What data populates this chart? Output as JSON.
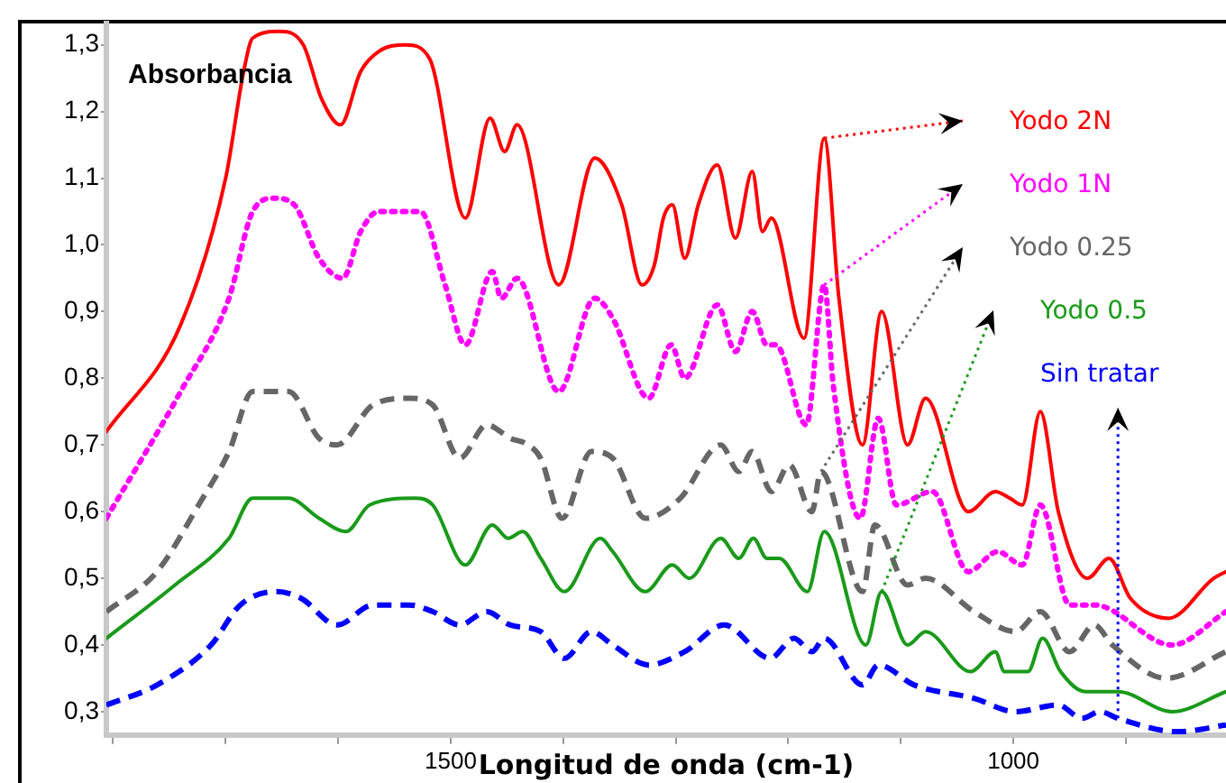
{
  "chart_data": {
    "type": "line",
    "xlabel": "Longitud de onda (cm-1)",
    "ylabel": "Absorbancia",
    "xlim": [
      1806,
      811
    ],
    "ylim": [
      0.265,
      1.332
    ],
    "xticks": [
      {
        "value": 1800,
        "label": null
      },
      {
        "value": 1700,
        "label": null
      },
      {
        "value": 1600,
        "label": null
      },
      1500,
      {
        "value": 1400,
        "label": null
      },
      {
        "value": 1300,
        "label": null
      },
      {
        "value": 1200,
        "label": null
      },
      {
        "value": 1100,
        "label": null
      },
      1000,
      {
        "value": 900,
        "label": null
      }
    ],
    "yticks": [
      {
        "value": 0.3,
        "label": "0,3"
      },
      {
        "value": 0.4,
        "label": "0,4"
      },
      {
        "value": 0.5,
        "label": "0,5"
      },
      {
        "value": 0.6,
        "label": "0,6"
      },
      {
        "value": 0.7,
        "label": "0,7"
      },
      {
        "value": 0.8,
        "label": "0,8"
      },
      {
        "value": 0.9,
        "label": "0,9"
      },
      {
        "value": 1.0,
        "label": "1,0"
      },
      {
        "value": 1.1,
        "label": "1,1"
      },
      {
        "value": 1.2,
        "label": "1,2"
      },
      {
        "value": 1.3,
        "label": "1,3"
      }
    ],
    "grid": false,
    "legend": false,
    "marker": "none",
    "series": [
      {
        "name": "Yodo 2N",
        "color": "#ff0000",
        "line_style": "solid",
        "x": [
          1806,
          1740,
          1700,
          1684,
          1676,
          1652,
          1631,
          1615,
          1598,
          1580,
          1564,
          1540,
          1519,
          1487,
          1465,
          1452,
          1441,
          1404,
          1372,
          1348,
          1330,
          1319,
          1311,
          1303,
          1292,
          1280,
          1263,
          1247,
          1232,
          1223,
          1215,
          1186,
          1168,
          1155,
          1134,
          1117,
          1094,
          1078,
          1040,
          1016,
          1003,
          992,
          976,
          960,
          934,
          915,
          896,
          862,
          822,
          811
        ],
        "values": [
          0.72,
          0.88,
          1.1,
          1.26,
          1.31,
          1.32,
          1.3,
          1.22,
          1.18,
          1.26,
          1.29,
          1.3,
          1.28,
          1.04,
          1.19,
          1.14,
          1.18,
          0.94,
          1.13,
          1.06,
          0.94,
          0.97,
          1.04,
          1.06,
          0.98,
          1.06,
          1.12,
          1.01,
          1.11,
          1.02,
          1.04,
          0.86,
          1.16,
          0.92,
          0.7,
          0.9,
          0.7,
          0.77,
          0.6,
          0.63,
          0.62,
          0.61,
          0.75,
          0.6,
          0.5,
          0.53,
          0.47,
          0.44,
          0.5,
          0.51
        ]
      },
      {
        "name": "Yodo 1N",
        "color": "#ff00ff",
        "line_style": "dotted",
        "x": [
          1806,
          1740,
          1697,
          1676,
          1657,
          1639,
          1617,
          1596,
          1580,
          1564,
          1543,
          1527,
          1505,
          1487,
          1463,
          1455,
          1441,
          1404,
          1372,
          1356,
          1324,
          1304,
          1292,
          1263,
          1247,
          1232,
          1219,
          1211,
          1184,
          1168,
          1160,
          1136,
          1120,
          1104,
          1072,
          1040,
          1014,
          992,
          976,
          950,
          928,
          859,
          811
        ],
        "values": [
          0.59,
          0.78,
          0.92,
          1.05,
          1.07,
          1.06,
          0.98,
          0.95,
          1.02,
          1.05,
          1.05,
          1.05,
          0.94,
          0.85,
          0.96,
          0.92,
          0.95,
          0.78,
          0.92,
          0.89,
          0.77,
          0.85,
          0.8,
          0.91,
          0.84,
          0.9,
          0.85,
          0.85,
          0.73,
          0.94,
          0.79,
          0.59,
          0.74,
          0.61,
          0.63,
          0.51,
          0.54,
          0.52,
          0.61,
          0.46,
          0.46,
          0.4,
          0.45
        ]
      },
      {
        "name": "Yodo 0.25",
        "color": "#666666",
        "line_style": "dashed",
        "x": [
          1806,
          1761,
          1724,
          1697,
          1676,
          1660,
          1644,
          1617,
          1601,
          1569,
          1537,
          1516,
          1492,
          1468,
          1447,
          1431,
          1420,
          1401,
          1375,
          1356,
          1327,
          1296,
          1260,
          1244,
          1232,
          1215,
          1199,
          1179,
          1171,
          1134,
          1123,
          1094,
          1078,
          1035,
          998,
          976,
          950,
          928,
          912,
          864,
          811
        ],
        "values": [
          0.45,
          0.51,
          0.61,
          0.69,
          0.78,
          0.78,
          0.78,
          0.71,
          0.7,
          0.76,
          0.77,
          0.76,
          0.68,
          0.73,
          0.71,
          0.7,
          0.68,
          0.59,
          0.69,
          0.68,
          0.59,
          0.62,
          0.7,
          0.66,
          0.69,
          0.63,
          0.67,
          0.6,
          0.66,
          0.48,
          0.58,
          0.49,
          0.5,
          0.45,
          0.42,
          0.45,
          0.39,
          0.43,
          0.4,
          0.35,
          0.39
        ]
      },
      {
        "name": "Yodo 0.5",
        "color": "#1a9a1a",
        "line_style": "solid",
        "x": [
          1806,
          1745,
          1697,
          1676,
          1644,
          1617,
          1593,
          1572,
          1532,
          1516,
          1487,
          1463,
          1449,
          1436,
          1420,
          1399,
          1367,
          1356,
          1327,
          1303,
          1288,
          1260,
          1244,
          1231,
          1219,
          1208,
          1183,
          1168,
          1131,
          1117,
          1094,
          1078,
          1038,
          1016,
          1008,
          987,
          974,
          958,
          936,
          920,
          907,
          859,
          811
        ],
        "values": [
          0.41,
          0.49,
          0.56,
          0.62,
          0.62,
          0.59,
          0.57,
          0.61,
          0.62,
          0.61,
          0.52,
          0.58,
          0.56,
          0.57,
          0.53,
          0.48,
          0.56,
          0.54,
          0.48,
          0.52,
          0.5,
          0.56,
          0.53,
          0.56,
          0.53,
          0.53,
          0.48,
          0.57,
          0.4,
          0.48,
          0.4,
          0.42,
          0.36,
          0.39,
          0.36,
          0.36,
          0.41,
          0.36,
          0.33,
          0.33,
          0.33,
          0.3,
          0.33
        ]
      },
      {
        "name": "Sin tratar",
        "color": "#0000ff",
        "line_style": "dashed",
        "x": [
          1806,
          1761,
          1713,
          1687,
          1655,
          1633,
          1601,
          1569,
          1537,
          1516,
          1492,
          1468,
          1447,
          1420,
          1399,
          1375,
          1356,
          1324,
          1292,
          1257,
          1216,
          1195,
          1179,
          1168,
          1134,
          1120,
          1088,
          1035,
          998,
          960,
          939,
          923,
          907,
          854,
          811
        ],
        "values": [
          0.31,
          0.34,
          0.4,
          0.46,
          0.48,
          0.47,
          0.43,
          0.46,
          0.46,
          0.45,
          0.43,
          0.45,
          0.43,
          0.42,
          0.38,
          0.42,
          0.4,
          0.37,
          0.39,
          0.43,
          0.38,
          0.41,
          0.39,
          0.41,
          0.34,
          0.37,
          0.34,
          0.32,
          0.3,
          0.31,
          0.29,
          0.3,
          0.29,
          0.27,
          0.28
        ]
      }
    ]
  }
}
